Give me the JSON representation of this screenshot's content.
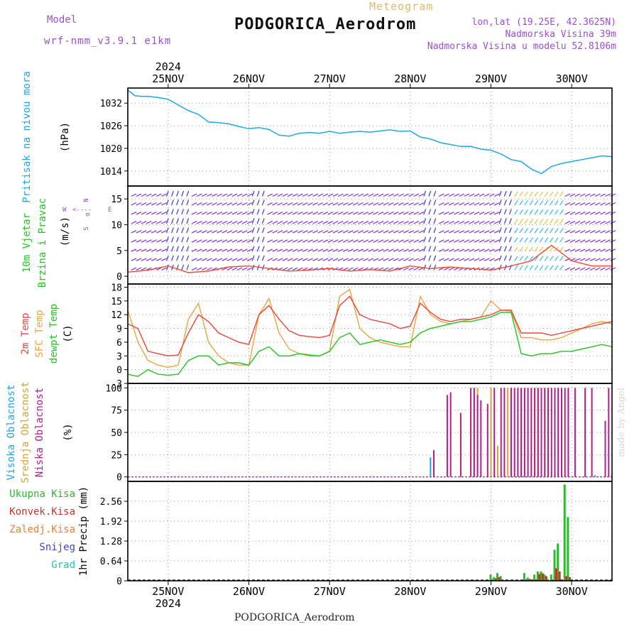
{
  "header": {
    "model_label": "Model",
    "model_name": "wrf-nmm_v3.9.1 e1km",
    "product": "Meteogram",
    "station": "PODGORICA_Aerodrom",
    "lonlat": "lon,lat (19.25E, 42.3625N)",
    "altitude": "Nadmorska Visina 39m",
    "model_altitude": "Nadmorska Visina u modelu 52.8106m"
  },
  "footer": {
    "station": "PODGORICA_Aerodrom",
    "credit": "made by Angel"
  },
  "colors": {
    "pressure": "#1ea7e8",
    "wind_speed": "#ef4b2d",
    "barb": "#8a2be2",
    "barb_strong": "#3a3ae0",
    "temp2m": "#e8473d",
    "sfc_temp": "#e6a640",
    "dewpt": "#22c422",
    "cloud_high": "#1ea7e8",
    "cloud_mid": "#d9a23a",
    "cloud_low": "#b0208c",
    "precip_total": "#2db82d",
    "precip_conv": "#c0392b",
    "precip_frozen": "#f08030",
    "precip_snow": "#4444dd",
    "precip_hail": "#20c0c0"
  },
  "time_axis": {
    "year": "2024",
    "days": [
      "25NOV",
      "26NOV",
      "27NOV",
      "28NOV",
      "29NOV",
      "30NOV"
    ],
    "range_hours": [
      0,
      144
    ],
    "day_start_hour": 12
  },
  "chart_data": [
    {
      "type": "line",
      "panel": "pressure",
      "ylabel_main": "Pritisak na nivou mora",
      "ylabel_unit": "(hPa)",
      "yticks": [
        "1032",
        "1026",
        "1020",
        "1014"
      ],
      "yticks_values": [
        1032,
        1026,
        1020,
        1014
      ],
      "ylim": [
        1010,
        1036
      ],
      "series": [
        {
          "x": [
            0,
            2,
            4,
            6,
            9,
            12,
            15,
            18,
            21,
            24,
            27,
            30,
            33,
            36,
            39,
            42,
            45,
            48,
            51,
            54,
            57,
            60,
            63,
            66,
            69,
            72,
            75,
            78,
            81,
            84,
            87,
            90,
            93,
            96,
            99,
            102,
            105,
            108,
            111,
            114,
            117,
            120,
            123,
            126,
            129,
            132,
            135,
            138,
            141,
            144
          ],
          "y": [
            1035.5,
            1034,
            1033.8,
            1033.8,
            1033.5,
            1033,
            1031.5,
            1030,
            1029,
            1027,
            1026.8,
            1026.5,
            1025.8,
            1025.2,
            1025.5,
            1025,
            1023.5,
            1023.2,
            1024,
            1024.2,
            1024,
            1024.5,
            1024,
            1024.3,
            1024.5,
            1024.3,
            1024.6,
            1024.9,
            1024.5,
            1024.6,
            1023,
            1022.5,
            1021.5,
            1021,
            1020.5,
            1020.5,
            1019.8,
            1019.5,
            1018.5,
            1017,
            1016.5,
            1014.5,
            1013.3,
            1015.2,
            1016,
            1016.5,
            1017,
            1017.5,
            1018,
            1017.8
          ]
        }
      ]
    },
    {
      "type": "line",
      "panel": "wind",
      "ylabel_main": "10m Vjetar",
      "ylabel_sub": "Brzina i Pravac",
      "ylabel_unit": "(m/s)",
      "compass": {
        "n": "N",
        "s": "S",
        "w": "W",
        "e": "E",
        "arrows": "<---",
        "minus": "-",
        "alpha": "α"
      },
      "yticks": [
        "15",
        "10",
        "5",
        "0"
      ],
      "yticks_values": [
        15,
        10,
        5,
        0
      ],
      "ylim": [
        -1.5,
        17.5
      ],
      "series": [
        {
          "name": "",
          "x": [
            0,
            6,
            12,
            18,
            24,
            30,
            36,
            42,
            48,
            54,
            60,
            66,
            72,
            78,
            84,
            90,
            96,
            102,
            108,
            114,
            120,
            126,
            132,
            138,
            144
          ],
          "y": [
            0.8,
            1.2,
            2.0,
            0.7,
            1.0,
            1.8,
            2.0,
            1.5,
            1.0,
            1.2,
            1.5,
            1.0,
            1.3,
            1.0,
            2.0,
            1.5,
            1.8,
            1.5,
            1.2,
            2.0,
            3.0,
            6.0,
            3.0,
            2.0,
            2.0
          ]
        }
      ]
    },
    {
      "type": "line",
      "panel": "temperature",
      "ylabel_main": "2m Temp",
      "ylabel_sub": "SFC Temp",
      "ylabel_sub2": "dewpt Temp",
      "ylabel_unit": "(C)",
      "yticks": [
        "18",
        "15",
        "12",
        "9",
        "6",
        "3",
        "0",
        "-3"
      ],
      "yticks_values": [
        18,
        15,
        12,
        9,
        6,
        3,
        0,
        -3
      ],
      "ylim": [
        -3,
        18.7
      ],
      "series": [
        {
          "name": "2m Temp",
          "x": [
            0,
            3,
            6,
            9,
            12,
            15,
            18,
            21,
            24,
            27,
            30,
            33,
            36,
            39,
            42,
            45,
            48,
            51,
            54,
            57,
            60,
            63,
            66,
            69,
            72,
            75,
            78,
            81,
            84,
            87,
            90,
            93,
            96,
            99,
            102,
            105,
            108,
            111,
            114,
            117,
            120,
            123,
            126,
            129,
            132,
            135,
            138,
            141,
            144
          ],
          "y": [
            10,
            9,
            4,
            3.5,
            3,
            3.2,
            8,
            12,
            10.5,
            8,
            7,
            6,
            5.5,
            12,
            14,
            11,
            8.5,
            7.5,
            7.2,
            7,
            7.5,
            14,
            16,
            12,
            11,
            10.5,
            10,
            9,
            9.5,
            14.5,
            12.5,
            11,
            10.5,
            11,
            11,
            11.5,
            12,
            13,
            13,
            8,
            8,
            8,
            7.5,
            8,
            8.5,
            9,
            9.5,
            10,
            10.5
          ]
        },
        {
          "name": "SFC Temp",
          "x": [
            0,
            3,
            6,
            9,
            12,
            15,
            18,
            21,
            24,
            27,
            30,
            33,
            36,
            39,
            42,
            45,
            48,
            51,
            54,
            57,
            60,
            63,
            66,
            69,
            72,
            75,
            78,
            81,
            84,
            87,
            90,
            93,
            96,
            99,
            102,
            105,
            108,
            111,
            114,
            117,
            120,
            123,
            126,
            129,
            132,
            135,
            138,
            141,
            144
          ],
          "y": [
            13,
            6,
            2,
            1,
            0.5,
            1,
            11,
            14.5,
            6,
            3,
            1.5,
            1,
            1,
            12,
            15.5,
            8,
            4.5,
            3.5,
            3,
            3,
            4,
            16,
            17.5,
            9,
            7,
            6,
            5.5,
            5,
            5,
            16,
            12,
            10.5,
            10,
            10.5,
            11,
            11.5,
            15,
            13,
            12.8,
            7,
            7,
            6.5,
            6.5,
            7,
            8,
            9,
            10,
            10.5,
            10
          ]
        },
        {
          "name": "dewpt Temp",
          "x": [
            0,
            3,
            6,
            9,
            12,
            15,
            18,
            21,
            24,
            27,
            30,
            33,
            36,
            39,
            42,
            45,
            48,
            51,
            54,
            57,
            60,
            63,
            66,
            69,
            72,
            75,
            78,
            81,
            84,
            87,
            90,
            93,
            96,
            99,
            102,
            105,
            108,
            111,
            114,
            117,
            120,
            123,
            126,
            129,
            132,
            135,
            138,
            141,
            144
          ],
          "y": [
            -1,
            -1.5,
            0,
            -1,
            -1.2,
            -1,
            2,
            3,
            3,
            1,
            1.5,
            1.5,
            1,
            4,
            5,
            3,
            3,
            3.5,
            3.2,
            3,
            4,
            7,
            8,
            5.5,
            6,
            6.5,
            6,
            5.5,
            6,
            8,
            9,
            9.5,
            10,
            10.5,
            10.5,
            11,
            11.5,
            12.5,
            12.5,
            3.5,
            3,
            3.5,
            3.5,
            4,
            4,
            4.5,
            5,
            5.5,
            5
          ]
        }
      ]
    },
    {
      "type": "bar",
      "panel": "clouds",
      "ylabel_main": "Visoka Oblacnost",
      "ylabel_sub": "Srednja Oblacnost",
      "ylabel_sub2": "Niska Oblacnost",
      "ylabel_unit": "(%)",
      "yticks": [
        "100",
        "75",
        "50",
        "25",
        "0"
      ],
      "yticks_values": [
        100,
        75,
        50,
        25,
        0
      ],
      "ylim": [
        -5,
        105
      ],
      "series": [
        {
          "name": "Visoka Oblacnost",
          "x": [
            90,
            139
          ],
          "y": [
            22,
            2
          ]
        },
        {
          "name": "Srednja Oblacnost",
          "x": [
            103,
            104,
            108,
            110,
            113,
            114,
            117,
            118,
            121,
            122,
            124,
            125,
            127,
            128,
            129,
            131
          ],
          "y": [
            100,
            100,
            100,
            35,
            100,
            100,
            100,
            100,
            100,
            100,
            100,
            100,
            100,
            100,
            20,
            100
          ]
        },
        {
          "name": "Niska Oblacnost",
          "x": [
            91,
            95,
            96,
            99,
            102,
            103,
            104,
            105,
            107,
            109,
            111,
            112,
            114,
            115,
            116,
            117,
            118,
            119,
            120,
            121,
            122,
            123,
            124,
            125,
            126,
            127,
            128,
            129,
            130,
            131,
            133,
            136,
            138,
            142,
            143
          ],
          "y": [
            30,
            92,
            95,
            72,
            100,
            100,
            92,
            86,
            82,
            100,
            100,
            100,
            100,
            100,
            100,
            100,
            100,
            100,
            100,
            100,
            100,
            100,
            100,
            100,
            100,
            100,
            100,
            100,
            100,
            100,
            100,
            100,
            100,
            63,
            100
          ]
        }
      ]
    },
    {
      "type": "bar",
      "panel": "precip",
      "ylabel_unit": "1hr Precip (mm)",
      "legend": [
        "Ukupna Kisa",
        "Konvek.Kisa",
        "Zaledj.Kisa",
        "Snijeg",
        "Grad"
      ],
      "yticks": [
        "2.56",
        "1.92",
        "1.28",
        "0.64",
        "0"
      ],
      "yticks_values": [
        2.56,
        1.92,
        1.28,
        0.64,
        0
      ],
      "ylim": [
        0,
        3.2
      ],
      "series": [
        {
          "name": "Ukupna Kisa",
          "x": [
            108,
            109,
            110,
            111,
            118,
            119,
            120,
            121,
            122,
            123,
            124,
            125,
            126,
            127,
            128,
            130,
            131,
            139,
            143
          ],
          "y": [
            0.2,
            0.12,
            0.25,
            0.15,
            0.25,
            0.1,
            0.05,
            0.2,
            0.3,
            0.3,
            0.2,
            0.05,
            0.2,
            1.0,
            1.2,
            3.1,
            2.05,
            0.02,
            0.03
          ]
        },
        {
          "name": "Konvek.Kisa",
          "x": [
            109,
            110,
            119,
            122,
            123,
            124,
            127,
            128,
            130,
            131
          ],
          "y": [
            0.08,
            0.12,
            0.06,
            0.22,
            0.24,
            0.15,
            0.4,
            0.3,
            0.15,
            0.12
          ]
        }
      ]
    }
  ]
}
